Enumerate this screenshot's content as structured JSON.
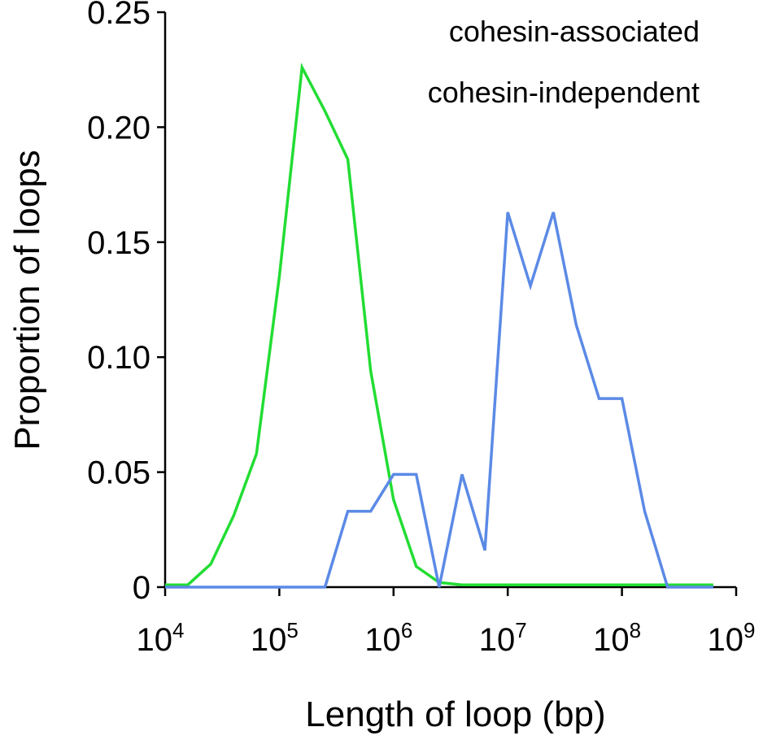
{
  "chart_data": {
    "type": "line",
    "title": "",
    "xlabel": "Length of loop (bp)",
    "ylabel": "Proportion of loops",
    "x_scale": "log",
    "xlim": [
      10000,
      1000000000
    ],
    "ylim": [
      0,
      0.25
    ],
    "x_ticks": [
      {
        "value": 10000,
        "base": "10",
        "exp": "4"
      },
      {
        "value": 100000,
        "base": "10",
        "exp": "5"
      },
      {
        "value": 1000000,
        "base": "10",
        "exp": "6"
      },
      {
        "value": 10000000,
        "base": "10",
        "exp": "7"
      },
      {
        "value": 100000000,
        "base": "10",
        "exp": "8"
      },
      {
        "value": 1000000000,
        "base": "10",
        "exp": "9"
      }
    ],
    "y_ticks": [
      {
        "value": 0,
        "label": "0"
      },
      {
        "value": 0.05,
        "label": "0.05"
      },
      {
        "value": 0.1,
        "label": "0.10"
      },
      {
        "value": 0.15,
        "label": "0.15"
      },
      {
        "value": 0.2,
        "label": "0.20"
      },
      {
        "value": 0.25,
        "label": "0.25"
      }
    ],
    "grid": false,
    "legend": "top-right",
    "series": [
      {
        "name": "cohesin-associated",
        "color": "#22dd33",
        "points": [
          [
            10000,
            0.001
          ],
          [
            15800,
            0.001
          ],
          [
            25100,
            0.01
          ],
          [
            39800,
            0.031
          ],
          [
            63100,
            0.058
          ],
          [
            100000,
            0.135
          ],
          [
            158000,
            0.226
          ],
          [
            251000,
            0.207
          ],
          [
            398000,
            0.186
          ],
          [
            631000,
            0.094
          ],
          [
            1000000,
            0.038
          ],
          [
            1580000,
            0.009
          ],
          [
            2510000,
            0.002
          ],
          [
            3980000,
            0.001
          ],
          [
            10000000,
            0.001
          ],
          [
            100000000,
            0.001
          ],
          [
            631000000,
            0.001
          ]
        ]
      },
      {
        "name": "cohesin-independent",
        "color": "#5b8ae6",
        "points": [
          [
            10000,
            0.0
          ],
          [
            251000,
            0.0
          ],
          [
            398000,
            0.033
          ],
          [
            631000,
            0.033
          ],
          [
            1000000,
            0.049
          ],
          [
            1580000,
            0.049
          ],
          [
            2510000,
            0.0
          ],
          [
            3980000,
            0.049
          ],
          [
            6310000,
            0.016
          ],
          [
            10000000,
            0.163
          ],
          [
            15800000,
            0.131
          ],
          [
            25100000,
            0.163
          ],
          [
            39800000,
            0.114
          ],
          [
            63100000,
            0.082
          ],
          [
            100000000,
            0.082
          ],
          [
            158000000,
            0.033
          ],
          [
            251000000,
            0.0
          ],
          [
            631000000,
            0.0
          ]
        ]
      }
    ]
  }
}
